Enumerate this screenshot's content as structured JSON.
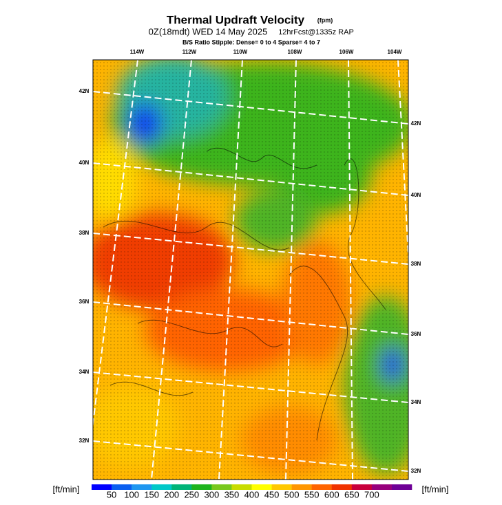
{
  "header": {
    "title": "Thermal Updraft Velocity",
    "title_unit": "(fpm)",
    "subtitle": "0Z(18mdt) WED 14 May 2025",
    "subtitle_run": "12hrFcst@1335z RAP",
    "stipple_note": "B/S Ratio Stipple:  Dense= 0 to 4  Sparse= 4 to 7"
  },
  "map": {
    "lon_labels": [
      "114W",
      "112W",
      "110W",
      "108W",
      "106W",
      "104W"
    ],
    "lat_labels_left": [
      "42N",
      "40N",
      "38N",
      "36N",
      "34N",
      "32N"
    ],
    "lat_labels_right": [
      "42N",
      "40N",
      "38N",
      "36N",
      "34N",
      "32N"
    ]
  },
  "colorbar": {
    "unit_left": "[ft/min]",
    "unit_right": "[ft/min]",
    "ticks": [
      50,
      100,
      150,
      200,
      250,
      300,
      350,
      400,
      450,
      500,
      550,
      600,
      650,
      700
    ],
    "colors": [
      "#0000ff",
      "#0a5ef0",
      "#1e96f0",
      "#00c8c8",
      "#00b478",
      "#1eb41e",
      "#78c81e",
      "#c8dc00",
      "#ffff00",
      "#ffc800",
      "#ff9600",
      "#ff6400",
      "#f03200",
      "#c8003c",
      "#96007d",
      "#6e0096"
    ]
  }
}
